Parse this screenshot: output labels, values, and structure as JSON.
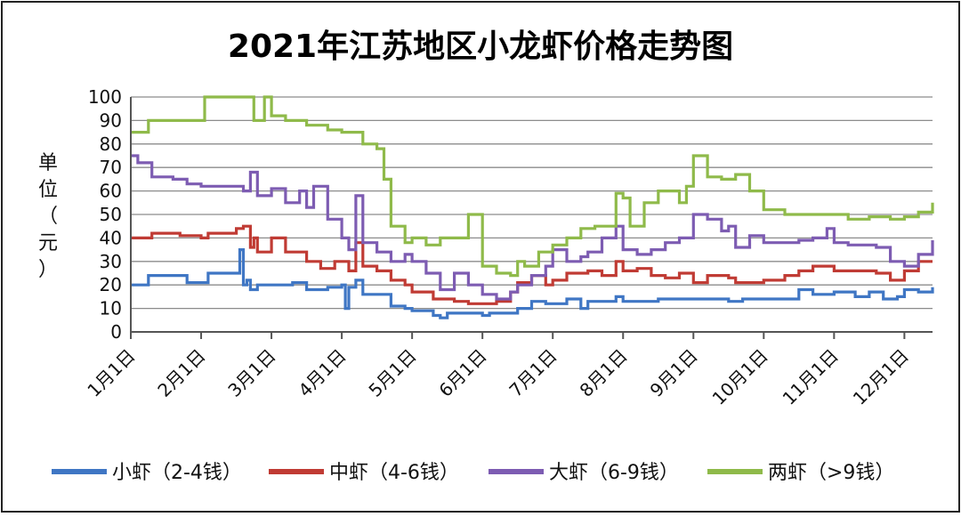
{
  "chart_data": {
    "type": "line",
    "title": "2021年江苏地区小龙虾价格走势图",
    "ylabel": "单位（元）",
    "ylabel_chars": [
      "单",
      "位",
      "（",
      "元",
      "）"
    ],
    "ylim": [
      0,
      100
    ],
    "yticks": [
      0,
      10,
      20,
      30,
      40,
      50,
      60,
      70,
      80,
      90,
      100
    ],
    "xlim": [
      1,
      12.4
    ],
    "x_tick_values": [
      1,
      2,
      3,
      4,
      5,
      6,
      7,
      8,
      9,
      10,
      11,
      12
    ],
    "x_tick_labels": [
      "1月1日",
      "2月1日",
      "3月1日",
      "4月1日",
      "5月1日",
      "6月1日",
      "7月1日",
      "8月1日",
      "9月1日",
      "10月1日",
      "11月1日",
      "12月1日"
    ],
    "grid": "horizontal",
    "legend_position": "bottom",
    "series": [
      {
        "name": "小虾（2-4钱）",
        "color": "#3f76c4",
        "x": [
          1,
          1.2,
          1.25,
          1.8,
          2.0,
          2.1,
          2.5,
          2.55,
          2.6,
          2.65,
          2.7,
          2.8,
          3.0,
          3.3,
          3.5,
          3.8,
          4.0,
          4.05,
          4.1,
          4.2,
          4.3,
          4.5,
          4.7,
          4.9,
          5.0,
          5.2,
          5.3,
          5.4,
          5.5,
          5.7,
          5.9,
          6.0,
          6.1,
          6.3,
          6.5,
          6.7,
          6.9,
          7.0,
          7.2,
          7.4,
          7.5,
          7.7,
          7.9,
          8.0,
          8.2,
          8.5,
          8.8,
          9.0,
          9.2,
          9.5,
          9.7,
          10.0,
          10.2,
          10.5,
          10.7,
          11.0,
          11.3,
          11.5,
          11.7,
          11.9,
          12.0,
          12.2,
          12.4
        ],
        "values": [
          20,
          20,
          24,
          21,
          21,
          25,
          25,
          35,
          20,
          22,
          18,
          20,
          20,
          21,
          18,
          19,
          20,
          10,
          19,
          22,
          16,
          16,
          11,
          10,
          9,
          9,
          7,
          6,
          8,
          8,
          8,
          7,
          8,
          8,
          10,
          13,
          12,
          12,
          14,
          10,
          13,
          13,
          15,
          13,
          13,
          14,
          14,
          14,
          14,
          13,
          14,
          14,
          14,
          18,
          16,
          17,
          15,
          17,
          14,
          15,
          18,
          17,
          19
        ]
      },
      {
        "name": "中虾（4-6钱）",
        "color": "#c03b34",
        "x": [
          1,
          1.2,
          1.3,
          1.6,
          1.7,
          2.0,
          2.1,
          2.4,
          2.5,
          2.6,
          2.7,
          2.75,
          2.8,
          3.0,
          3.2,
          3.5,
          3.7,
          3.9,
          4.0,
          4.1,
          4.2,
          4.3,
          4.5,
          4.7,
          4.9,
          5.0,
          5.2,
          5.3,
          5.4,
          5.6,
          5.8,
          6.0,
          6.2,
          6.4,
          6.5,
          6.7,
          6.9,
          7.0,
          7.2,
          7.5,
          7.7,
          7.9,
          8.0,
          8.2,
          8.4,
          8.6,
          8.8,
          9.0,
          9.2,
          9.5,
          9.6,
          9.8,
          10.0,
          10.3,
          10.5,
          10.7,
          11.0,
          11.2,
          11.4,
          11.6,
          11.8,
          12.0,
          12.2,
          12.4
        ],
        "values": [
          40,
          40,
          42,
          42,
          41,
          40,
          42,
          42,
          44,
          45,
          36,
          40,
          34,
          40,
          34,
          30,
          27,
          30,
          30,
          26,
          38,
          28,
          26,
          22,
          20,
          17,
          17,
          14,
          14,
          13,
          12,
          12,
          13,
          17,
          21,
          24,
          20,
          22,
          25,
          26,
          24,
          30,
          26,
          27,
          24,
          23,
          25,
          21,
          24,
          23,
          21,
          21,
          22,
          24,
          26,
          28,
          26,
          26,
          26,
          25,
          22,
          26,
          30,
          30
        ]
      },
      {
        "name": "大虾（6-9钱）",
        "color": "#7d5cb2",
        "x": [
          1,
          1.1,
          1.3,
          1.6,
          1.8,
          2.0,
          2.3,
          2.5,
          2.6,
          2.7,
          2.8,
          3.0,
          3.2,
          3.4,
          3.5,
          3.6,
          3.8,
          4.0,
          4.1,
          4.2,
          4.3,
          4.5,
          4.7,
          4.9,
          5.0,
          5.2,
          5.4,
          5.6,
          5.8,
          6.0,
          6.2,
          6.4,
          6.5,
          6.7,
          6.9,
          7.0,
          7.2,
          7.4,
          7.5,
          7.7,
          7.9,
          8.0,
          8.2,
          8.4,
          8.6,
          8.8,
          9.0,
          9.2,
          9.4,
          9.5,
          9.6,
          9.8,
          10.0,
          10.2,
          10.5,
          10.7,
          10.9,
          11.0,
          11.2,
          11.4,
          11.6,
          11.8,
          12.0,
          12.2,
          12.4
        ],
        "values": [
          75,
          72,
          66,
          65,
          63,
          62,
          62,
          62,
          60,
          68,
          58,
          61,
          55,
          60,
          53,
          62,
          48,
          40,
          35,
          58,
          38,
          34,
          30,
          33,
          30,
          25,
          18,
          25,
          20,
          16,
          14,
          17,
          20,
          24,
          28,
          35,
          30,
          32,
          34,
          40,
          45,
          35,
          33,
          35,
          38,
          40,
          50,
          48,
          43,
          45,
          36,
          41,
          38,
          38,
          39,
          40,
          44,
          38,
          37,
          37,
          36,
          30,
          28,
          33,
          39
        ]
      },
      {
        "name": "两虾（>9钱）",
        "color": "#8fba4a",
        "x": [
          1,
          1.15,
          1.25,
          1.6,
          2.0,
          2.05,
          2.5,
          2.7,
          2.75,
          2.9,
          3.0,
          3.2,
          3.5,
          3.8,
          4.0,
          4.3,
          4.5,
          4.6,
          4.7,
          4.9,
          5.0,
          5.2,
          5.4,
          5.6,
          5.8,
          6.0,
          6.2,
          6.4,
          6.5,
          6.6,
          6.8,
          7.0,
          7.2,
          7.4,
          7.6,
          7.7,
          7.9,
          8.0,
          8.1,
          8.3,
          8.5,
          8.8,
          8.9,
          9.0,
          9.2,
          9.4,
          9.6,
          9.8,
          10.0,
          10.3,
          10.7,
          11.0,
          11.2,
          11.5,
          11.8,
          12.0,
          12.2,
          12.4
        ],
        "values": [
          85,
          85,
          90,
          90,
          90,
          100,
          100,
          100,
          90,
          100,
          92,
          90,
          88,
          86,
          85,
          80,
          78,
          65,
          45,
          38,
          40,
          37,
          40,
          40,
          50,
          28,
          25,
          24,
          30,
          28,
          34,
          37,
          40,
          44,
          45,
          45,
          59,
          57,
          45,
          55,
          60,
          55,
          62,
          75,
          66,
          65,
          67,
          60,
          52,
          50,
          50,
          50,
          48,
          49,
          48,
          49,
          51,
          55
        ]
      }
    ]
  }
}
